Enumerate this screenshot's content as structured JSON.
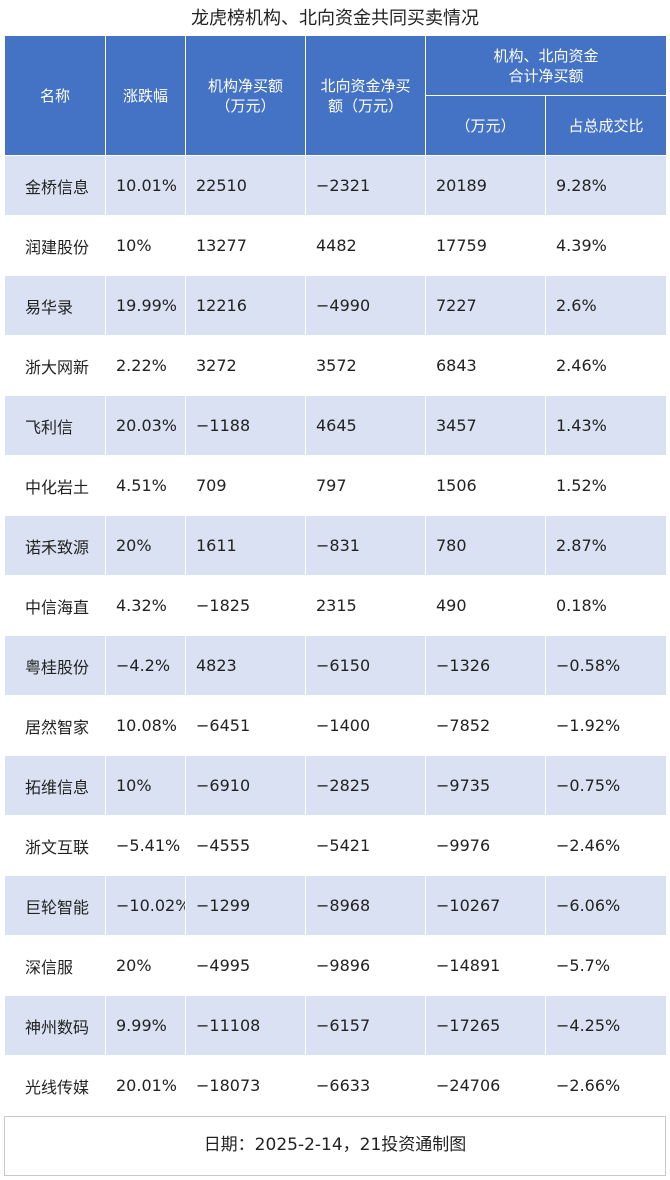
{
  "title": "龙虎榜机构、北向资金共同买卖情况",
  "headers": {
    "name": "名称",
    "change": "涨跌幅",
    "inst_line1": "机构净买额",
    "inst_line2": "（万元）",
    "north_line1": "北向资金净买",
    "north_line2": "额（万元）",
    "combined_line1": "机构、北向资金",
    "combined_line2": "合计净买额",
    "combined_sub_amount": "（万元）",
    "combined_sub_ratio": "占总成交比"
  },
  "rows": [
    {
      "name": "金桥信息",
      "change": "10.01%",
      "inst": "22510",
      "north": "−2321",
      "total": "20189",
      "ratio": "9.28%"
    },
    {
      "name": "润建股份",
      "change": "10%",
      "inst": "13277",
      "north": "4482",
      "total": "17759",
      "ratio": "4.39%"
    },
    {
      "name": "易华录",
      "change": "19.99%",
      "inst": "12216",
      "north": "−4990",
      "total": "7227",
      "ratio": "2.6%"
    },
    {
      "name": "浙大网新",
      "change": "2.22%",
      "inst": "3272",
      "north": "3572",
      "total": "6843",
      "ratio": "2.46%"
    },
    {
      "name": "飞利信",
      "change": "20.03%",
      "inst": "−1188",
      "north": "4645",
      "total": "3457",
      "ratio": "1.43%"
    },
    {
      "name": "中化岩土",
      "change": "4.51%",
      "inst": "709",
      "north": "797",
      "total": "1506",
      "ratio": "1.52%"
    },
    {
      "name": "诺禾致源",
      "change": "20%",
      "inst": "1611",
      "north": "−831",
      "total": "780",
      "ratio": "2.87%"
    },
    {
      "name": "中信海直",
      "change": "4.32%",
      "inst": "−1825",
      "north": "2315",
      "total": "490",
      "ratio": "0.18%"
    },
    {
      "name": "粤桂股份",
      "change": "−4.2%",
      "inst": "4823",
      "north": "−6150",
      "total": "−1326",
      "ratio": "−0.58%"
    },
    {
      "name": "居然智家",
      "change": "10.08%",
      "inst": "−6451",
      "north": "−1400",
      "total": "−7852",
      "ratio": "−1.92%"
    },
    {
      "name": "拓维信息",
      "change": "10%",
      "inst": "−6910",
      "north": "−2825",
      "total": "−9735",
      "ratio": "−0.75%"
    },
    {
      "name": "浙文互联",
      "change": "−5.41%",
      "inst": "−4555",
      "north": "−5421",
      "total": "−9976",
      "ratio": "−2.46%"
    },
    {
      "name": "巨轮智能",
      "change": "−10.02%",
      "inst": "−1299",
      "north": "−8968",
      "total": "−10267",
      "ratio": "−6.06%"
    },
    {
      "name": "深信服",
      "change": "20%",
      "inst": "−4995",
      "north": "−9896",
      "total": "−14891",
      "ratio": "−5.7%"
    },
    {
      "name": "神州数码",
      "change": "9.99%",
      "inst": "−11108",
      "north": "−6157",
      "total": "−17265",
      "ratio": "−4.25%"
    },
    {
      "name": "光线传媒",
      "change": "20.01%",
      "inst": "−18073",
      "north": "−6633",
      "total": "−24706",
      "ratio": "−2.66%"
    }
  ],
  "footer": "日期：2025-2-14，21投资通制图"
}
